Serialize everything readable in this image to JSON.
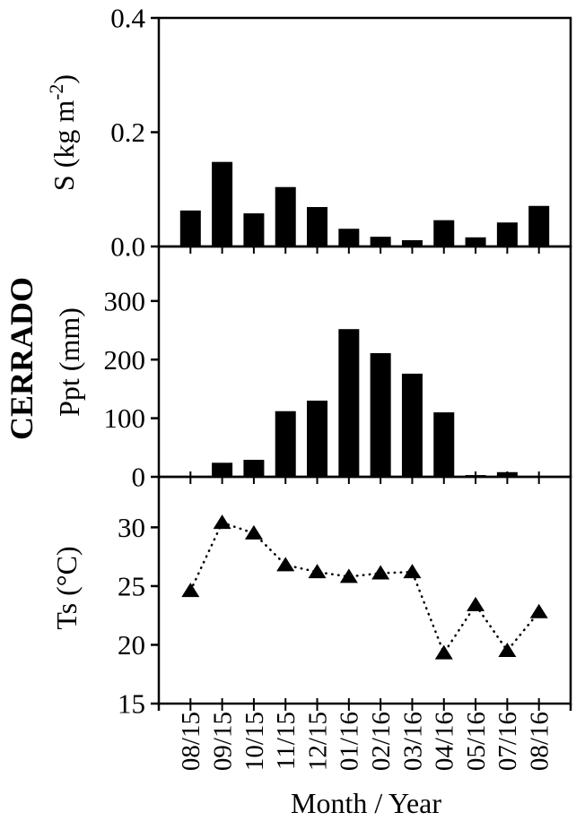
{
  "figure": {
    "site_label": "CERRADO",
    "background": "#ffffff",
    "ink": "#000000"
  },
  "x_axis": {
    "title": "Month / Year",
    "tick_labels": [
      "08/15",
      "09/15",
      "10/15",
      "11/15",
      "12/15",
      "01/16",
      "02/16",
      "03/16",
      "04/16",
      "05/16",
      "07/16",
      "08/16"
    ]
  },
  "chart_data": [
    {
      "type": "bar",
      "name": "s-flux",
      "ylabel": "S (kg m-2)",
      "ylabel_parts": {
        "prefix": "S (kg m",
        "superscript": "-2",
        "suffix": ")"
      },
      "categories": [
        "08/15",
        "09/15",
        "10/15",
        "11/15",
        "12/15",
        "01/16",
        "02/16",
        "03/16",
        "04/16",
        "05/16",
        "07/16",
        "08/16"
      ],
      "values": [
        0.063,
        0.148,
        0.058,
        0.104,
        0.069,
        0.031,
        0.017,
        0.011,
        0.046,
        0.016,
        0.042,
        0.071
      ],
      "yticks": [
        0,
        0.2,
        0.4
      ],
      "ytick_labels": [
        "0.0",
        "0.2",
        "0.4"
      ],
      "ylim": [
        0,
        0.4
      ],
      "bar_color": "#000000",
      "grid": false,
      "legend": false
    },
    {
      "type": "bar",
      "name": "ppt",
      "ylabel": "Ppt (mm)",
      "categories": [
        "08/15",
        "09/15",
        "10/15",
        "11/15",
        "12/15",
        "01/16",
        "02/16",
        "03/16",
        "04/16",
        "05/16",
        "07/16",
        "08/16"
      ],
      "values": [
        0,
        24,
        29,
        112,
        130,
        252,
        211,
        176,
        110,
        3,
        8,
        0
      ],
      "yticks": [
        0,
        100,
        200,
        300
      ],
      "ytick_labels": [
        "0",
        "100",
        "200",
        "300"
      ],
      "ylim": [
        0,
        393
      ],
      "bar_color": "#000000",
      "grid": false,
      "legend": false
    },
    {
      "type": "line",
      "name": "ts",
      "ylabel": "Ts (°C)",
      "categories": [
        "08/15",
        "09/15",
        "10/15",
        "11/15",
        "12/15",
        "01/16",
        "02/16",
        "03/16",
        "04/16",
        "05/16",
        "07/16",
        "08/16"
      ],
      "values": [
        24.6,
        30.4,
        29.5,
        26.8,
        26.2,
        25.8,
        26.1,
        26.2,
        19.3,
        23.4,
        19.5,
        22.8
      ],
      "yticks": [
        15,
        20,
        25,
        30
      ],
      "ytick_labels": [
        "15",
        "20",
        "25",
        "30"
      ],
      "ylim": [
        15,
        34.3
      ],
      "marker": "filled-triangle-up",
      "line_style": "dotted",
      "color": "#000000",
      "grid": false,
      "legend": false
    }
  ]
}
